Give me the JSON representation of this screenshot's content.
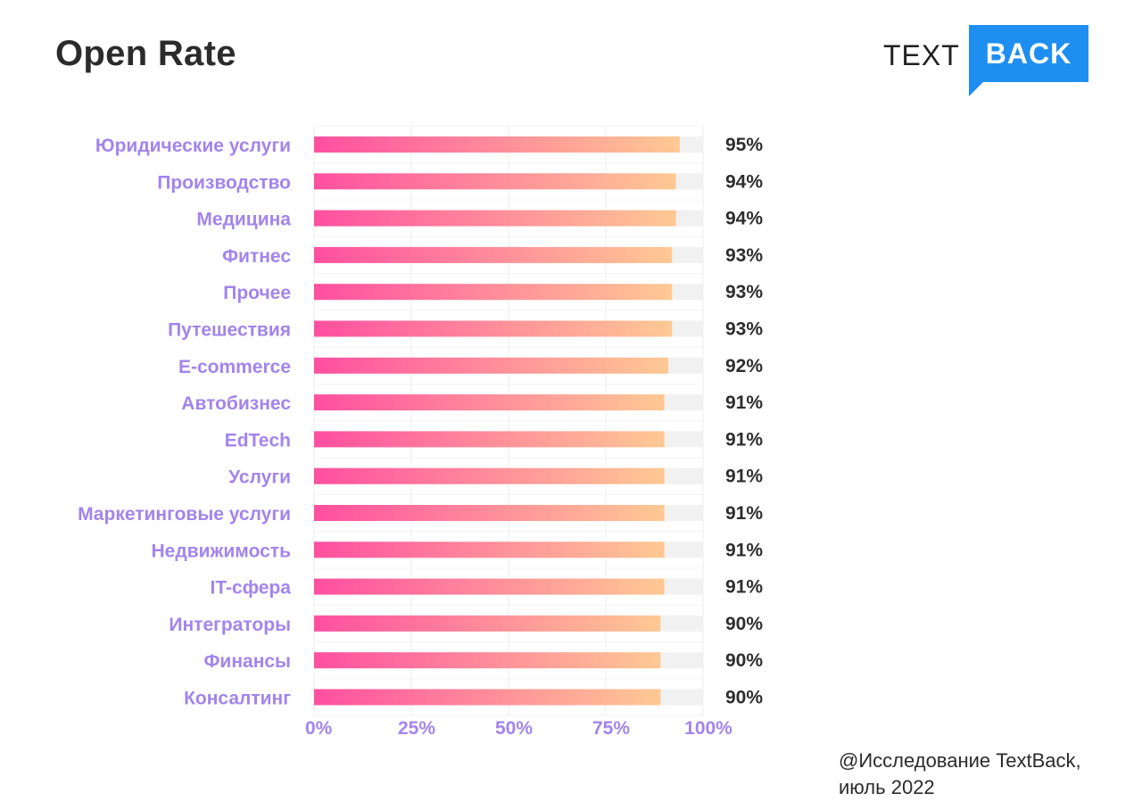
{
  "title": "Open Rate",
  "logo": {
    "text": "TEXT",
    "box_text": "BACK",
    "color": "#1e8ff0"
  },
  "source": {
    "line1": "@Исследование TextBack,",
    "line2": "июль 2022"
  },
  "colors": {
    "gradient_start": "#ff4fa1",
    "gradient_end": "#ffc994",
    "track": "#f1f1f1",
    "label": "#a384ec",
    "value": "#2d2d2d"
  },
  "chart_data": {
    "type": "bar",
    "orientation": "horizontal",
    "categories": [
      "Юридические услуги",
      "Производство",
      "Медицина",
      "Фитнес",
      "Прочее",
      "Путешествия",
      "E-commerce",
      "Автобизнес",
      "EdTech",
      "Услуги",
      "Маркетинговые услуги",
      "Недвижимость",
      "IT-сфера",
      "Интеграторы",
      "Финансы",
      "Консалтинг"
    ],
    "values": [
      95,
      94,
      94,
      93,
      93,
      93,
      92,
      91,
      91,
      91,
      91,
      91,
      91,
      90,
      90,
      90
    ],
    "value_labels": [
      "95%",
      "94%",
      "94%",
      "93%",
      "93%",
      "93%",
      "92%",
      "91%",
      "91%",
      "91%",
      "91%",
      "91%",
      "91%",
      "90%",
      "90%",
      "90%"
    ],
    "xlim": [
      0,
      100
    ],
    "xticks": [
      "0%",
      "25%",
      "50%",
      "75%",
      "100%"
    ],
    "grid": true
  }
}
